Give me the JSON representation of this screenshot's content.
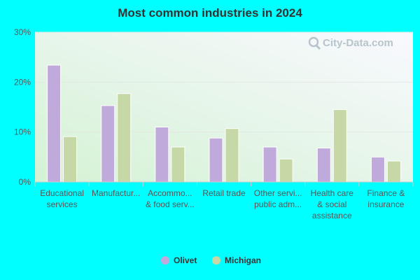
{
  "chart_data": {
    "type": "bar",
    "title": "Most common industries in 2024",
    "categories": [
      [
        "Educational",
        "services"
      ],
      [
        "Manufactur..."
      ],
      [
        "Accommo...",
        "& food serv..."
      ],
      [
        "Retail trade"
      ],
      [
        "Other servi...",
        "public adm..."
      ],
      [
        "Health care",
        "& social",
        "assistance"
      ],
      [
        "Finance &",
        "insurance"
      ]
    ],
    "series": [
      {
        "name": "Olivet",
        "color": "#c0a9db",
        "values": [
          23.4,
          15.3,
          11.0,
          8.8,
          7.0,
          6.8,
          5.0
        ]
      },
      {
        "name": "Michigan",
        "color": "#c5d8a5",
        "values": [
          9.1,
          17.7,
          7.0,
          10.7,
          4.6,
          14.5,
          4.2
        ]
      }
    ],
    "ylim": [
      0,
      30
    ],
    "yticks": [
      "0%",
      "10%",
      "20%",
      "30%"
    ],
    "ytick_values": [
      0,
      10,
      20,
      30
    ],
    "grid": true,
    "legend_position": "bottom-center"
  },
  "watermark": {
    "text": "City-Data.com",
    "icon": "magnifier-icon"
  }
}
